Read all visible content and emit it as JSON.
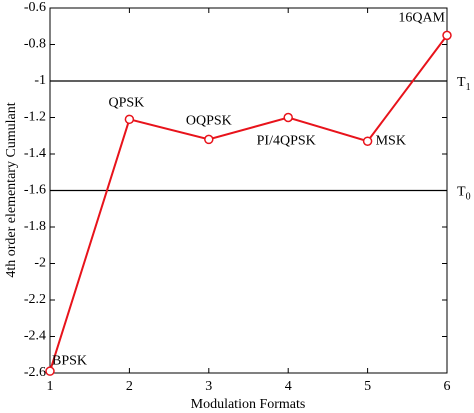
{
  "chart_data": {
    "type": "line",
    "xlabel": "Modulation Formats",
    "ylabel": "4th order elementary Cumulant",
    "x": [
      1,
      2,
      3,
      4,
      5,
      6
    ],
    "series": [
      {
        "color": "#e8131b",
        "values": [
          -2.59,
          -1.21,
          -1.32,
          -1.2,
          -1.33,
          -0.75
        ]
      }
    ],
    "point_labels": [
      "BPSK",
      "QPSK",
      "OQPSK",
      "PI/4QPSK",
      "MSK",
      "16QAM"
    ],
    "thresholds": [
      {
        "value": -1,
        "label": "T",
        "subscript": "1"
      },
      {
        "value": -1.6,
        "label": "T",
        "subscript": "0"
      }
    ],
    "xlim": [
      1,
      6
    ],
    "xticks": [
      1,
      2,
      3,
      4,
      5,
      6
    ],
    "ylim": [
      -2.6,
      -0.6
    ],
    "yticks": [
      -2.6,
      -2.4,
      -2.2,
      -2,
      -1.8,
      -1.6,
      -1.4,
      -1.2,
      -1,
      -0.8,
      -0.6
    ],
    "grid": false
  }
}
